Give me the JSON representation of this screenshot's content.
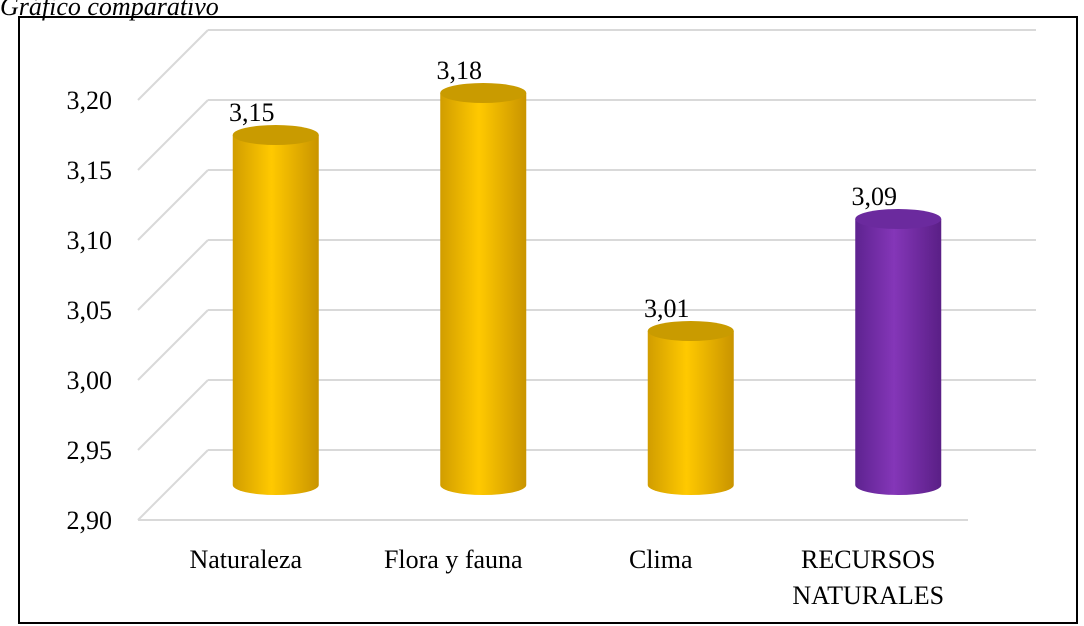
{
  "caption": "Gráfico comparativo",
  "chart_data": {
    "type": "bar",
    "style": "3d-cylinder",
    "categories": [
      "Naturaleza",
      "Flora y fauna",
      "Clima",
      "RECURSOS NATURALES"
    ],
    "category_lines": [
      [
        "Naturaleza"
      ],
      [
        "Flora y fauna"
      ],
      [
        "Clima"
      ],
      [
        "RECURSOS",
        "NATURALES"
      ]
    ],
    "values": [
      3.15,
      3.18,
      3.01,
      3.09
    ],
    "value_labels": [
      "3,15",
      "3,18",
      "3,01",
      "3,09"
    ],
    "yticks": [
      "2,90",
      "2,95",
      "3,00",
      "3,05",
      "3,10",
      "3,15",
      "3,20"
    ],
    "ylim": [
      2.9,
      3.2
    ],
    "grid": true,
    "legend": "none",
    "colors": {
      "bar": "#FFC000",
      "highlight": "#7030A0",
      "gridline": "#D9D9D9"
    },
    "highlight_index": 3
  }
}
